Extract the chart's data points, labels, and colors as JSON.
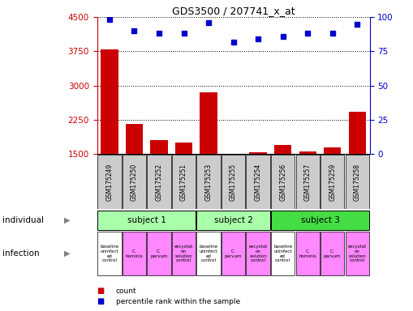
{
  "title": "GDS3500 / 207741_x_at",
  "samples": [
    "GSM175249",
    "GSM175250",
    "GSM175252",
    "GSM175251",
    "GSM175253",
    "GSM175255",
    "GSM175254",
    "GSM175256",
    "GSM175257",
    "GSM175259",
    "GSM175258"
  ],
  "counts": [
    3800,
    2150,
    1800,
    1750,
    2850,
    1510,
    1530,
    1700,
    1550,
    1650,
    2420
  ],
  "percentile_ranks": [
    98,
    90,
    88,
    88,
    96,
    82,
    84,
    86,
    88,
    88,
    95
  ],
  "ylim_left": [
    1500,
    4500
  ],
  "ylim_right": [
    0,
    100
  ],
  "yticks_left": [
    1500,
    2250,
    3000,
    3750,
    4500
  ],
  "yticks_right": [
    0,
    25,
    50,
    75,
    100
  ],
  "bar_color": "#cc0000",
  "dot_color": "#0000cc",
  "subjects": [
    {
      "label": "subject 1",
      "start": 0,
      "end": 3,
      "color": "#aaffaa"
    },
    {
      "label": "subject 2",
      "start": 4,
      "end": 6,
      "color": "#aaffaa"
    },
    {
      "label": "subject 3",
      "start": 7,
      "end": 10,
      "color": "#44dd44"
    }
  ],
  "infections": [
    {
      "label": "baseline\nuninfect\ned\ncontrol",
      "col": 0,
      "color": "#ffffff"
    },
    {
      "label": "C.\nhominis",
      "col": 1,
      "color": "#ff88ff"
    },
    {
      "label": "C.\nparvum",
      "col": 2,
      "color": "#ff88ff"
    },
    {
      "label": "excystat\non\nsolution\ncontrol",
      "col": 3,
      "color": "#ff88ff"
    },
    {
      "label": "baseline\nuninfect\ned\ncontrol",
      "col": 4,
      "color": "#ffffff"
    },
    {
      "label": "C.\nparvum",
      "col": 5,
      "color": "#ff88ff"
    },
    {
      "label": "excystat\non\nsolution\ncontrol",
      "col": 6,
      "color": "#ff88ff"
    },
    {
      "label": "baseline\nuninfect\ned\ncontrol",
      "col": 7,
      "color": "#ffffff"
    },
    {
      "label": "C.\nhominis",
      "col": 8,
      "color": "#ff88ff"
    },
    {
      "label": "C.\nparvum",
      "col": 9,
      "color": "#ff88ff"
    },
    {
      "label": "excystat\non\nsolution\ncontrol",
      "col": 10,
      "color": "#ff88ff"
    }
  ],
  "row_label_individual": "individual",
  "row_label_infection": "infection",
  "bg_color": "#ffffff",
  "tick_color_left": "#cc0000",
  "tick_color_right": "#0000cc",
  "sample_box_color": "#cccccc",
  "legend": [
    {
      "label": "count",
      "color": "#cc0000"
    },
    {
      "label": "percentile rank within the sample",
      "color": "#0000cc"
    }
  ]
}
